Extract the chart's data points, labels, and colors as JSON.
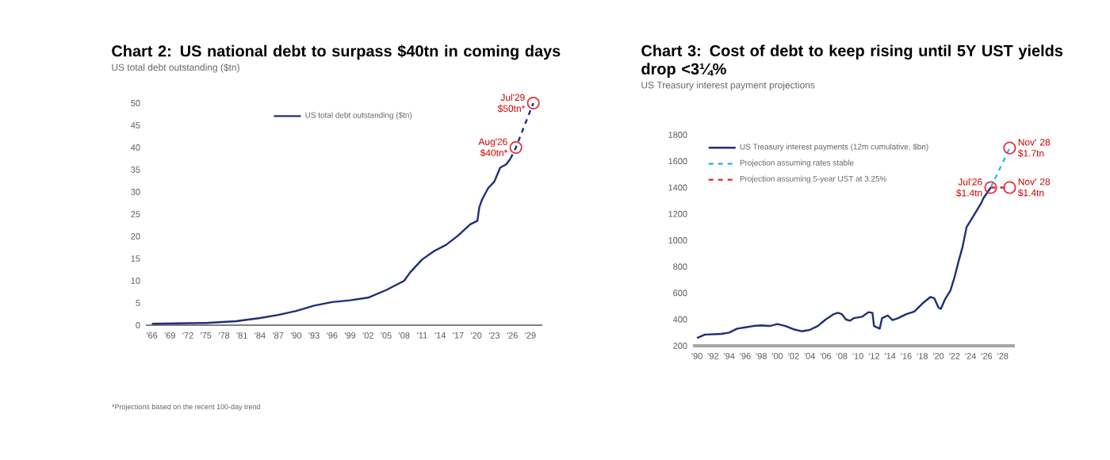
{
  "chart_data": [
    {
      "type": "line",
      "title": "Chart 2: US national debt to surpass $40tn in coming days",
      "subtitle": "US total debt outstanding ($tn)",
      "xlim": [
        1965,
        2031
      ],
      "ylim": [
        0,
        50
      ],
      "yticks": [
        0,
        5,
        10,
        15,
        20,
        25,
        30,
        35,
        40,
        45,
        50
      ],
      "xticks": [
        {
          "value": 1966,
          "label": "'66"
        },
        {
          "value": 1969,
          "label": "'69"
        },
        {
          "value": 1972,
          "label": "'72"
        },
        {
          "value": 1975,
          "label": "'75"
        },
        {
          "value": 1978,
          "label": "'78"
        },
        {
          "value": 1981,
          "label": "'81"
        },
        {
          "value": 1984,
          "label": "'84"
        },
        {
          "value": 1987,
          "label": "'87"
        },
        {
          "value": 1990,
          "label": "'90"
        },
        {
          "value": 1993,
          "label": "'93"
        },
        {
          "value": 1996,
          "label": "'96"
        },
        {
          "value": 1999,
          "label": "'99"
        },
        {
          "value": 2002,
          "label": "'02"
        },
        {
          "value": 2005,
          "label": "'05"
        },
        {
          "value": 2008,
          "label": "'08"
        },
        {
          "value": 2011,
          "label": "'11"
        },
        {
          "value": 2014,
          "label": "'14"
        },
        {
          "value": 2017,
          "label": "'17"
        },
        {
          "value": 2020,
          "label": "'20"
        },
        {
          "value": 2023,
          "label": "'23"
        },
        {
          "value": 2026,
          "label": "'26"
        },
        {
          "value": 2029,
          "label": "'29"
        }
      ],
      "legend": "top",
      "series": [
        {
          "name": "US total debt outstanding ($tn)",
          "color": "#1f2f78",
          "line_style": "solid",
          "x": [
            1966,
            1970,
            1975,
            1980,
            1984,
            1987,
            1990,
            1993,
            1996,
            1999,
            2002,
            2005,
            2008,
            2009,
            2011,
            2013,
            2015,
            2017,
            2019,
            2020.2,
            2020.5,
            2021,
            2022,
            2023,
            2024,
            2025,
            2025.7
          ],
          "values": [
            0.3,
            0.4,
            0.5,
            0.9,
            1.6,
            2.3,
            3.2,
            4.4,
            5.2,
            5.6,
            6.2,
            7.9,
            10.0,
            11.9,
            14.8,
            16.7,
            18.1,
            20.2,
            22.7,
            23.5,
            26.5,
            28.4,
            30.9,
            32.3,
            35.5,
            36.2,
            37.5
          ]
        },
        {
          "color": "#1f2f78",
          "line_style": "dashed",
          "x": [
            2025.7,
            2026.6,
            2029.5
          ],
          "values": [
            37.5,
            40,
            50
          ]
        },
        {
          "type": "scatter",
          "marker": "circle",
          "color": "#e0303f",
          "x": [
            2026.6,
            2029.5
          ],
          "values": [
            40,
            50
          ]
        }
      ],
      "annotations": [
        {
          "text": "Aug'26 $40tn*",
          "x": 2026.6,
          "y": 40
        },
        {
          "text": "Jul'29 $50tn*",
          "x": 2029.5,
          "y": 50
        },
        "*Projections based on the recent 100-day trend"
      ]
    },
    {
      "type": "line",
      "title": "Chart 3: Cost of debt to keep rising until 5Y UST yields drop <3¼%",
      "subtitle": "US Treasury interest payment projections",
      "xlim": [
        1989.5,
        2029.5
      ],
      "ylim": [
        200,
        1800
      ],
      "yticks": [
        200,
        400,
        600,
        800,
        1000,
        1200,
        1400,
        1600,
        1800
      ],
      "xticks": [
        {
          "value": 1990,
          "label": "'90"
        },
        {
          "value": 1992,
          "label": "'92"
        },
        {
          "value": 1994,
          "label": "'94"
        },
        {
          "value": 1996,
          "label": "'96"
        },
        {
          "value": 1998,
          "label": "'98"
        },
        {
          "value": 2000,
          "label": "'00"
        },
        {
          "value": 2002,
          "label": "'02"
        },
        {
          "value": 2004,
          "label": "'04"
        },
        {
          "value": 2006,
          "label": "'06"
        },
        {
          "value": 2008,
          "label": "'08"
        },
        {
          "value": 2010,
          "label": "'10"
        },
        {
          "value": 2012,
          "label": "'12"
        },
        {
          "value": 2014,
          "label": "'14"
        },
        {
          "value": 2016,
          "label": "'16"
        },
        {
          "value": 2018,
          "label": "'18"
        },
        {
          "value": 2020,
          "label": "'20"
        },
        {
          "value": 2022,
          "label": "'22"
        },
        {
          "value": 2024,
          "label": "'24"
        },
        {
          "value": 2026,
          "label": "'26"
        },
        {
          "value": 2028,
          "label": "'28"
        }
      ],
      "legend": "top left",
      "series": [
        {
          "name": "US Treasury interest payments (12m cumulative, $bn)",
          "color": "#1f2f78",
          "line_style": "solid",
          "x": [
            1990,
            1991,
            1993,
            1994,
            1995,
            1996,
            1997,
            1998,
            1999,
            2000,
            2001,
            2002,
            2003,
            2004,
            2005,
            2006,
            2007,
            2007.5,
            2008,
            2008.5,
            2009,
            2009.5,
            2010.5,
            2011.3,
            2011.8,
            2012,
            2012.7,
            2013,
            2013.7,
            2014.3,
            2015,
            2016,
            2017,
            2018,
            2019,
            2019.5,
            2020,
            2020.3,
            2020.8,
            2021.5,
            2022,
            2022.5,
            2023,
            2023.5,
            2024,
            2024.6,
            2025.3,
            2025.6,
            2026.5
          ],
          "values": [
            260,
            285,
            290,
            300,
            330,
            340,
            350,
            355,
            350,
            365,
            350,
            325,
            310,
            320,
            350,
            400,
            440,
            450,
            440,
            400,
            390,
            410,
            420,
            455,
            450,
            350,
            330,
            410,
            430,
            395,
            410,
            440,
            460,
            520,
            570,
            560,
            490,
            480,
            550,
            620,
            720,
            840,
            950,
            1100,
            1150,
            1210,
            1280,
            1320,
            1400
          ]
        },
        {
          "name": "Projection assuming rates stable",
          "color": "#35b6ea",
          "line_style": "dashed",
          "x": [
            2026.5,
            2028.85
          ],
          "values": [
            1400,
            1700
          ]
        },
        {
          "name": "Projection assuming 5-year UST at 3.25%",
          "color": "#d9263a",
          "line_style": "dashed",
          "x": [
            2026.5,
            2028.85
          ],
          "values": [
            1400,
            1400
          ]
        },
        {
          "type": "scatter",
          "marker": "circle",
          "color": "#e0303f",
          "x": [
            2026.5,
            2028.85,
            2028.85
          ],
          "values": [
            1400,
            1700,
            1400
          ]
        }
      ],
      "annotations": [
        {
          "text": "Jul'26 $1.4tn",
          "x": 2026.5,
          "y": 1400
        },
        {
          "text": "Nov' 28 $1.7tn",
          "x": 2028.85,
          "y": 1700
        },
        {
          "text": "Nov' 28 $1.4tn",
          "x": 2028.85,
          "y": 1400
        }
      ]
    }
  ]
}
